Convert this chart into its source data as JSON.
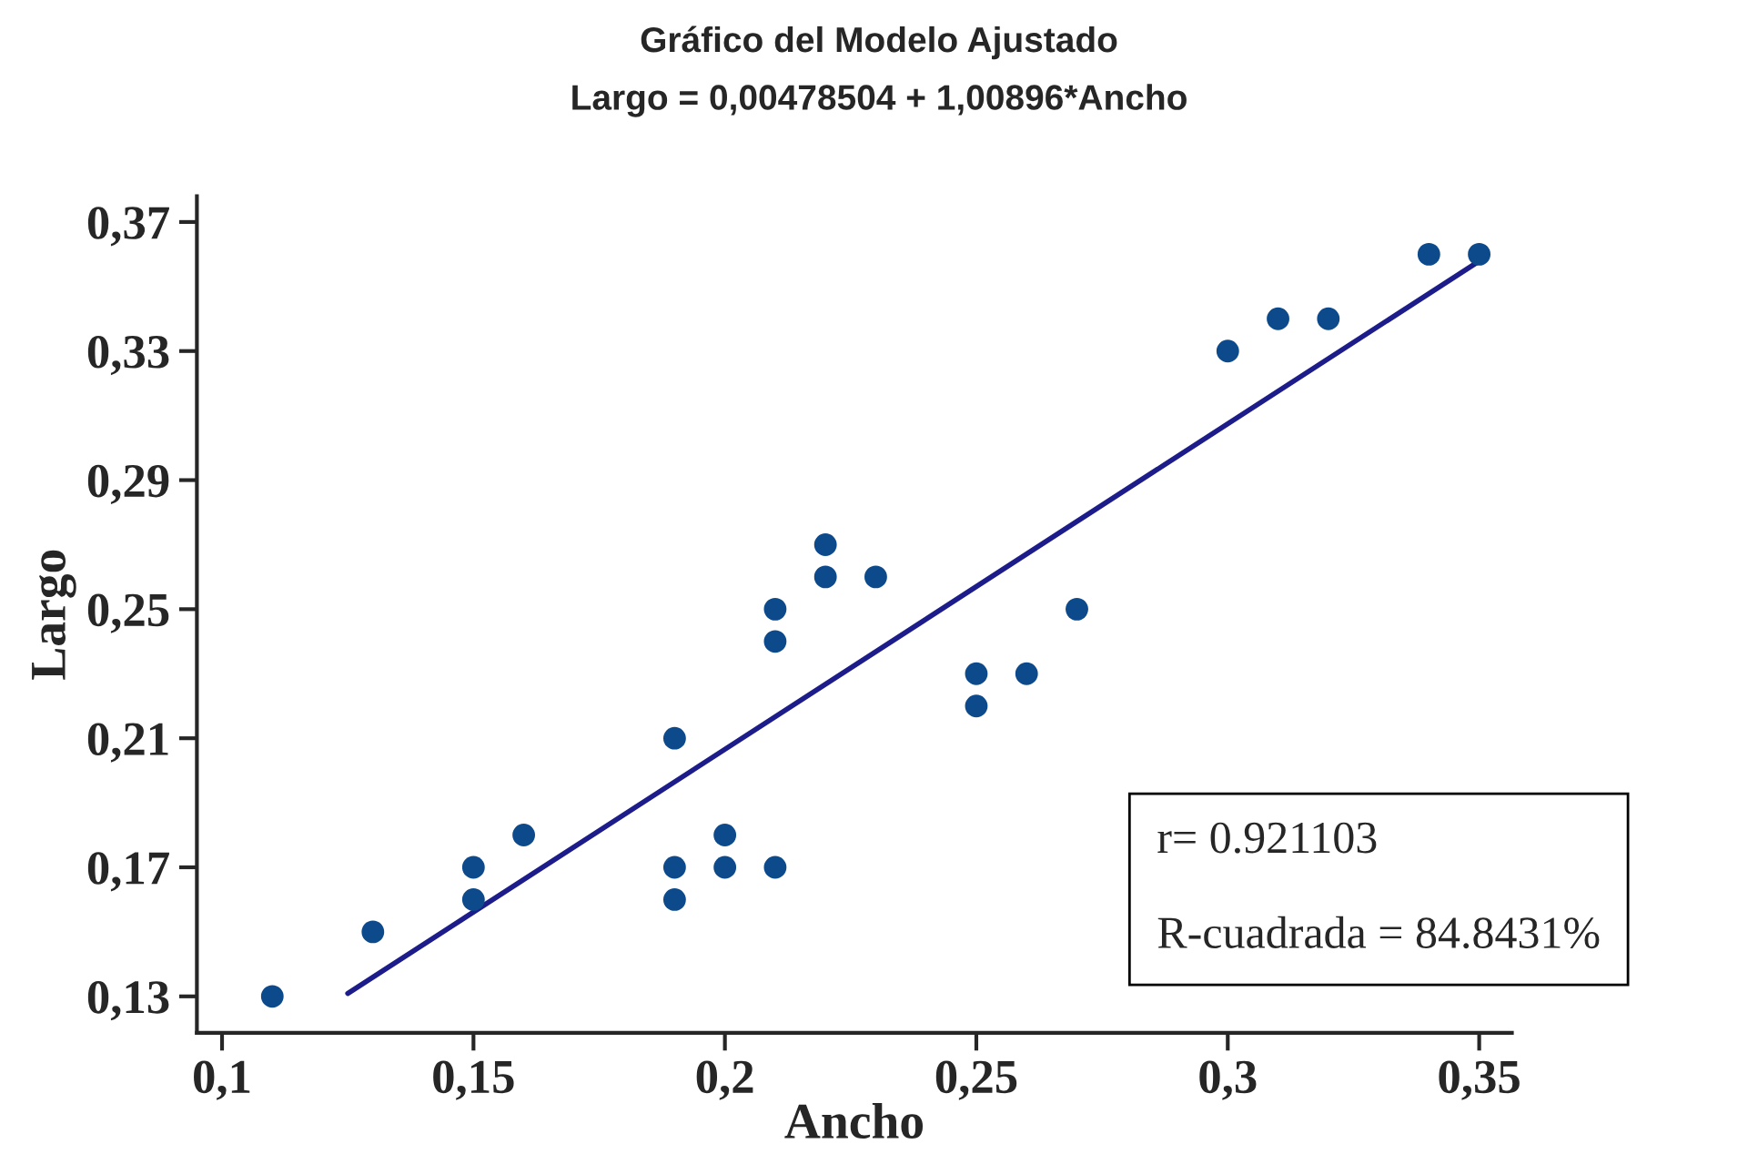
{
  "chart_data": {
    "type": "scatter",
    "title": "Gráfico del Modelo Ajustado",
    "subtitle": "Largo = 0,00478504 + 1,00896*Ancho",
    "xlabel": "Ancho",
    "ylabel": "Largo",
    "series": [
      {
        "color": "#0d4a8c",
        "marker": "circle",
        "x": [
          0.11,
          0.13,
          0.15,
          0.15,
          0.16,
          0.19,
          0.19,
          0.19,
          0.2,
          0.2,
          0.21,
          0.21,
          0.21,
          0.22,
          0.22,
          0.23,
          0.25,
          0.25,
          0.26,
          0.27,
          0.3,
          0.31,
          0.32,
          0.34,
          0.35
        ],
        "values": [
          0.13,
          0.15,
          0.17,
          0.16,
          0.18,
          0.21,
          0.17,
          0.16,
          0.18,
          0.17,
          0.17,
          0.25,
          0.24,
          0.27,
          0.26,
          0.26,
          0.23,
          0.22,
          0.23,
          0.25,
          0.33,
          0.34,
          0.34,
          0.36,
          0.36
        ]
      },
      {
        "type": "line",
        "color": "#1c1c8a",
        "line_style": "solid",
        "x": [
          0.125,
          0.35
        ],
        "values": [
          0.1309,
          0.3579
        ]
      }
    ],
    "xlim": [
      0.095,
      0.3565
    ],
    "ylim": [
      0.1187,
      0.378
    ],
    "xticks": [
      {
        "value": 0.1,
        "label": "0,1"
      },
      {
        "value": 0.15,
        "label": "0,15"
      },
      {
        "value": 0.2,
        "label": "0,2"
      },
      {
        "value": 0.25,
        "label": "0,25"
      },
      {
        "value": 0.3,
        "label": "0,3"
      },
      {
        "value": 0.35,
        "label": "0,35"
      }
    ],
    "yticks": [
      {
        "value": 0.13,
        "label": "0,13"
      },
      {
        "value": 0.17,
        "label": "0,17"
      },
      {
        "value": 0.21,
        "label": "0,21"
      },
      {
        "value": 0.25,
        "label": "0,25"
      },
      {
        "value": 0.29,
        "label": "0,29"
      },
      {
        "value": 0.33,
        "label": "0,33"
      },
      {
        "value": 0.37,
        "label": "0,37"
      }
    ],
    "grid": false,
    "legend": false,
    "annotations": [
      "r= 0.921103",
      "R-cuadrada = 84.8431%"
    ]
  }
}
